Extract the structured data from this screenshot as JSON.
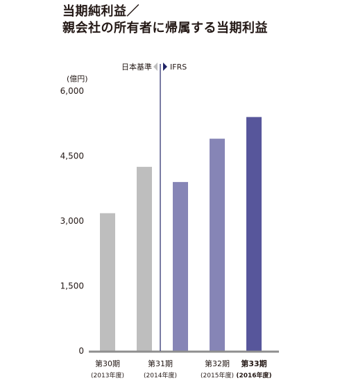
{
  "title": {
    "line1": "当期純利益／",
    "line2": "親会社の所有者に帰属する当期利益"
  },
  "chart_data": {
    "type": "bar",
    "unit_label": "(億円)",
    "ylim": [
      0,
      6000
    ],
    "yticks": [
      0,
      1500,
      3000,
      4500,
      6000
    ],
    "ytick_labels": [
      "0",
      "1,500",
      "3,000",
      "4,500",
      "6,000"
    ],
    "standards": {
      "left": "日本基準",
      "right": "IFRS"
    },
    "bars": [
      {
        "label": "第30期",
        "sublabel": "(2013年度)",
        "group": 0,
        "standard": "jgaap",
        "value": 3180,
        "color": "#bebebe",
        "bold": false
      },
      {
        "label": "第31期",
        "sublabel": "(2014年度)",
        "group": 1,
        "standard": "jgaap",
        "value": 4250,
        "color": "#bebebe",
        "bold": false
      },
      {
        "label": "",
        "sublabel": "",
        "group": 1,
        "standard": "ifrs",
        "value": 3900,
        "color": "#8685b6",
        "bold": false
      },
      {
        "label": "第32期",
        "sublabel": "(2015年度)",
        "group": 2,
        "standard": "ifrs",
        "value": 4900,
        "color": "#8685b6",
        "bold": false
      },
      {
        "label": "第33期",
        "sublabel": "(2016年度)",
        "group": 3,
        "standard": "ifrs",
        "value": 5400,
        "color": "#57569b",
        "bold": true
      }
    ],
    "colors": {
      "axis": "#8e8e8e",
      "divider": "#1f2366",
      "marker_left": "#bebebe",
      "marker_right": "#1f2366"
    }
  }
}
